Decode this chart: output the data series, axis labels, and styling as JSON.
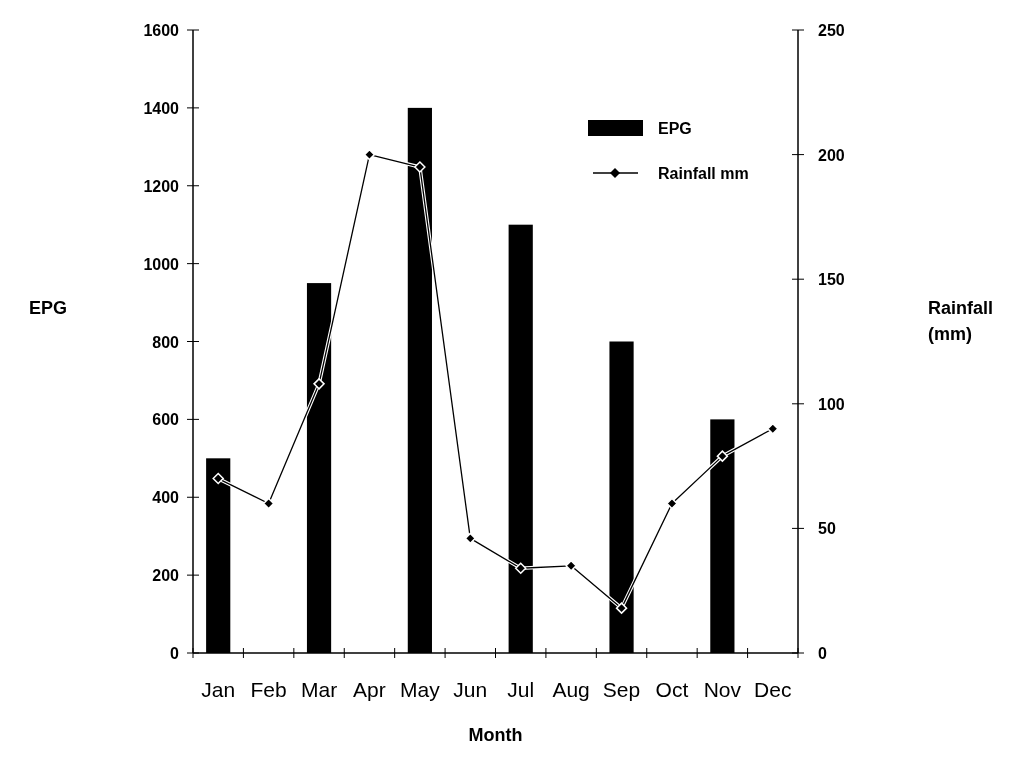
{
  "chart_data": {
    "type": "bar",
    "xlabel": "Month",
    "ylabel": "EPG",
    "y2label": "Rainfall (mm)",
    "categories": [
      "Jan",
      "Feb",
      "Mar",
      "Apr",
      "May",
      "Jun",
      "Jul",
      "Aug",
      "Sep",
      "Oct",
      "Nov",
      "Dec"
    ],
    "series": [
      {
        "name": "EPG",
        "color": "#000000",
        "values": [
          500,
          null,
          950,
          null,
          1400,
          null,
          1100,
          null,
          800,
          null,
          600,
          null
        ]
      },
      {
        "name": "Rainfall mm",
        "type": "line",
        "axis": "y2",
        "color": "#000000",
        "marker": "diamond",
        "line_style": "solid",
        "values": [
          70,
          60,
          108,
          200,
          195,
          46,
          34,
          35,
          18,
          60,
          79,
          90
        ]
      }
    ],
    "ylim": [
      0,
      1600
    ],
    "yticks": [
      0,
      200,
      400,
      600,
      800,
      1000,
      1200,
      1400,
      1600
    ],
    "y2lim": [
      0,
      250
    ],
    "y2ticks": [
      0,
      50,
      100,
      150,
      200,
      250
    ],
    "grid": false,
    "legend": "top right"
  }
}
